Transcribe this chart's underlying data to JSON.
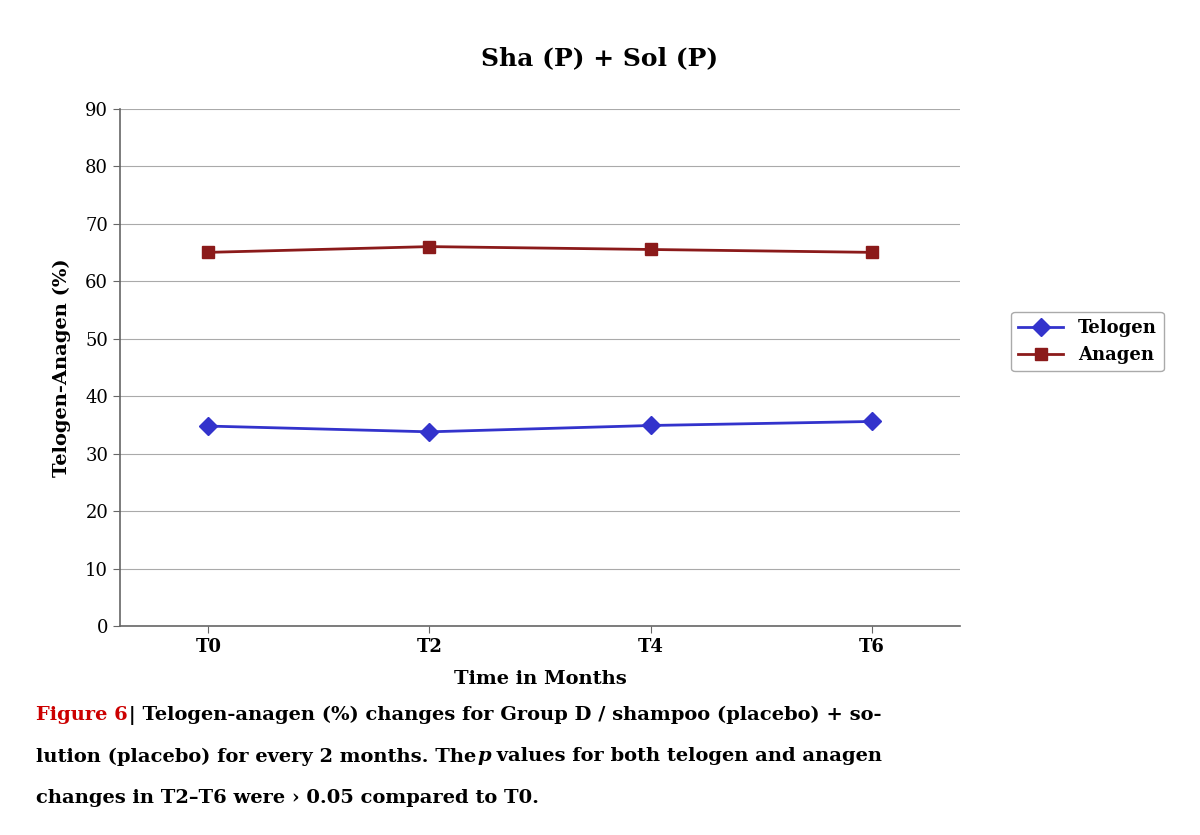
{
  "title": "Sha (P) + Sol (P)",
  "xlabel": "Time in Months",
  "ylabel": "Telogen-Anagen (%)",
  "x_labels": [
    "T0",
    "T2",
    "T4",
    "T6"
  ],
  "x_values": [
    0,
    1,
    2,
    3
  ],
  "telogen_values": [
    34.8,
    33.8,
    34.9,
    35.6
  ],
  "anagen_values": [
    65.0,
    66.0,
    65.5,
    65.0
  ],
  "telogen_color": "#3333cc",
  "anagen_color": "#8b1a1a",
  "ylim": [
    0,
    90
  ],
  "yticks": [
    0,
    10,
    20,
    30,
    40,
    50,
    60,
    70,
    80,
    90
  ],
  "background_color": "#ffffff",
  "grid_color": "#aaaaaa",
  "border_color": "#bbbbbb",
  "caption_figure": "Figure 6",
  "caption_line1_pre": " | Telogen-anagen (%) changes for Group D / shampoo (placebo) + so-",
  "caption_line2_pre": "lution (placebo) for every 2 months. The ",
  "caption_italic": "p",
  "caption_line2_post": " values for both telogen and anagen",
  "caption_line3": "changes in T2–T6 were › 0.05 compared to T0.",
  "caption_color": "#cc0000",
  "caption_text_color": "#000000",
  "title_fontsize": 18,
  "axis_label_fontsize": 14,
  "tick_fontsize": 13,
  "legend_fontsize": 13,
  "caption_fontsize": 14
}
